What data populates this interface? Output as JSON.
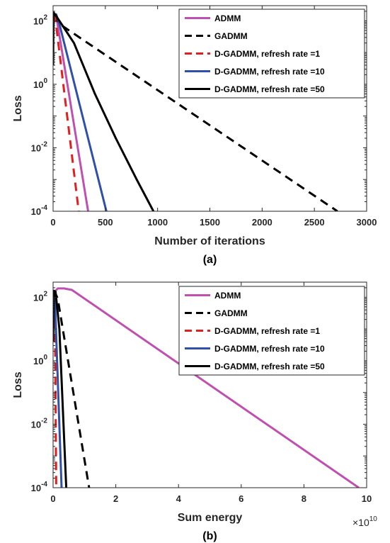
{
  "chart_data": [
    {
      "type": "line",
      "caption": "(a)",
      "xlabel": "Number of iterations",
      "ylabel": "Loss",
      "xlim": [
        0,
        3000
      ],
      "ylim": [
        0.0001,
        300
      ],
      "yscale": "log",
      "x_ticks": [
        0,
        500,
        1000,
        1500,
        2000,
        2500,
        3000
      ],
      "x_tick_labels": [
        "0",
        "500",
        "1000",
        "1500",
        "2000",
        "2500",
        "3000"
      ],
      "y_ticks": [
        0.0001,
        0.01,
        1,
        100
      ],
      "y_tick_labels": [
        {
          "base": "10",
          "exp": "-4"
        },
        {
          "base": "10",
          "exp": "-2"
        },
        {
          "base": "10",
          "exp": "0"
        },
        {
          "base": "10",
          "exp": "2"
        }
      ],
      "x_multiplier": "",
      "legend_position": "top-right",
      "series": [
        {
          "name": "ADMM",
          "color": "#c050b0",
          "dash": "solid",
          "points": [
            [
              0,
              150
            ],
            [
              20,
              150
            ],
            [
              40,
              90
            ],
            [
              335,
              0.0001
            ]
          ]
        },
        {
          "name": "GADMM",
          "color": "#000000",
          "dash": "dashed",
          "points": [
            [
              0,
              150
            ],
            [
              20,
              130
            ],
            [
              60,
              80
            ],
            [
              2720,
              0.0001
            ]
          ]
        },
        {
          "name": "D-GADMM, refresh rate =1",
          "color": "#e02020",
          "dash": "dashed",
          "points": [
            [
              0,
              150
            ],
            [
              15,
              150
            ],
            [
              30,
              70
            ],
            [
              245,
              0.0001
            ]
          ]
        },
        {
          "name": "D-GADMM, refresh rate =10",
          "color": "#2f4fa8",
          "dash": "solid",
          "points": [
            [
              0,
              5
            ],
            [
              2,
              60
            ],
            [
              4,
              150
            ],
            [
              30,
              160
            ],
            [
              60,
              80
            ],
            [
              510,
              0.0001
            ]
          ]
        },
        {
          "name": "D-GADMM, refresh rate =50",
          "color": "#000000",
          "dash": "solid",
          "points": [
            [
              0,
              4
            ],
            [
              3,
              80
            ],
            [
              6,
              180
            ],
            [
              30,
              140
            ],
            [
              60,
              100
            ],
            [
              200,
              20
            ],
            [
              400,
              0.5
            ],
            [
              600,
              0.02
            ],
            [
              800,
              0.001
            ],
            [
              960,
              0.0001
            ]
          ]
        }
      ]
    },
    {
      "type": "line",
      "caption": "(b)",
      "xlabel": "Sum energy",
      "ylabel": "Loss",
      "xlim": [
        0,
        10
      ],
      "ylim": [
        0.0001,
        300
      ],
      "yscale": "log",
      "x_ticks": [
        0,
        2,
        4,
        6,
        8,
        10
      ],
      "x_tick_labels": [
        "0",
        "2",
        "4",
        "6",
        "8",
        "10"
      ],
      "y_ticks": [
        0.0001,
        0.01,
        1,
        100
      ],
      "y_tick_labels": [
        {
          "base": "10",
          "exp": "-4"
        },
        {
          "base": "10",
          "exp": "-2"
        },
        {
          "base": "10",
          "exp": "0"
        },
        {
          "base": "10",
          "exp": "2"
        }
      ],
      "x_multiplier": {
        "base": "×10",
        "exp": "10"
      },
      "legend_position": "top-right",
      "series": [
        {
          "name": "ADMM",
          "color": "#c050b0",
          "dash": "solid",
          "points": [
            [
              0,
              90
            ],
            [
              0.05,
              150
            ],
            [
              0.15,
              190
            ],
            [
              0.35,
              190
            ],
            [
              0.6,
              170
            ],
            [
              9.75,
              0.0001
            ]
          ]
        },
        {
          "name": "GADMM",
          "color": "#000000",
          "dash": "dashed",
          "points": [
            [
              0,
              140
            ],
            [
              0.05,
              150
            ],
            [
              0.15,
              90
            ],
            [
              1.15,
              0.0001
            ]
          ]
        },
        {
          "name": "D-GADMM, refresh rate =1",
          "color": "#e02020",
          "dash": "dashed",
          "points": [
            [
              0,
              150
            ],
            [
              0.03,
              120
            ],
            [
              0.06,
              20
            ],
            [
              0.1,
              0.0001
            ]
          ]
        },
        {
          "name": "D-GADMM, refresh rate =10",
          "color": "#2f4fa8",
          "dash": "solid",
          "points": [
            [
              0,
              5
            ],
            [
              0.02,
              150
            ],
            [
              0.05,
              150
            ],
            [
              0.27,
              0.0001
            ]
          ]
        },
        {
          "name": "D-GADMM, refresh rate =50",
          "color": "#000000",
          "dash": "solid",
          "points": [
            [
              0,
              4
            ],
            [
              0.03,
              160
            ],
            [
              0.08,
              150
            ],
            [
              0.2,
              10
            ],
            [
              0.42,
              0.0001
            ]
          ]
        }
      ]
    }
  ]
}
